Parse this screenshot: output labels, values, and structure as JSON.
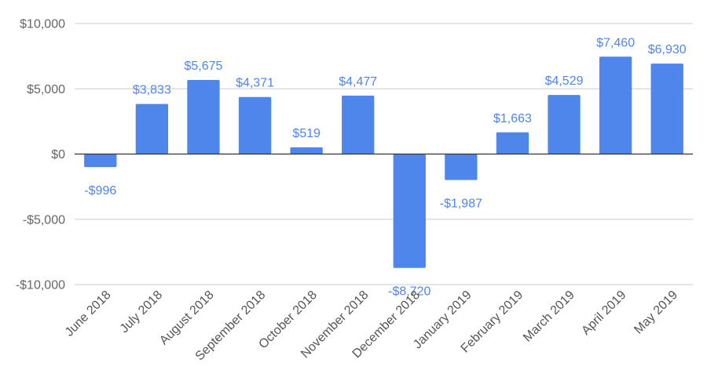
{
  "chart_data": {
    "type": "bar",
    "categories": [
      "June 2018",
      "July 2018",
      "August 2018",
      "September 2018",
      "October 2018",
      "November 2018",
      "December 2018",
      "January 2019",
      "February 2019",
      "March 2019",
      "April 2019",
      "May 2019"
    ],
    "values": [
      -996,
      3833,
      5675,
      4371,
      519,
      4477,
      -8720,
      -1987,
      1663,
      4529,
      7460,
      6930
    ],
    "data_labels": [
      "-$996",
      "$3,833",
      "$5,675",
      "$4,371",
      "$519",
      "$4,477",
      "-$8,720",
      "-$1,987",
      "$1,663",
      "$4,529",
      "$7,460",
      "$6,930"
    ],
    "y_ticks": [
      10000,
      5000,
      0,
      -5000,
      -10000
    ],
    "y_tick_labels": [
      "$10,000",
      "$5,000",
      "$0",
      "-$5,000",
      "-$10,000"
    ],
    "ylim": [
      -10000,
      10000
    ],
    "title": "",
    "xlabel": "",
    "ylabel": "",
    "grid": true,
    "legend": "none",
    "colors": {
      "bar": "#4f86ec",
      "label": "#4f86ec"
    }
  }
}
